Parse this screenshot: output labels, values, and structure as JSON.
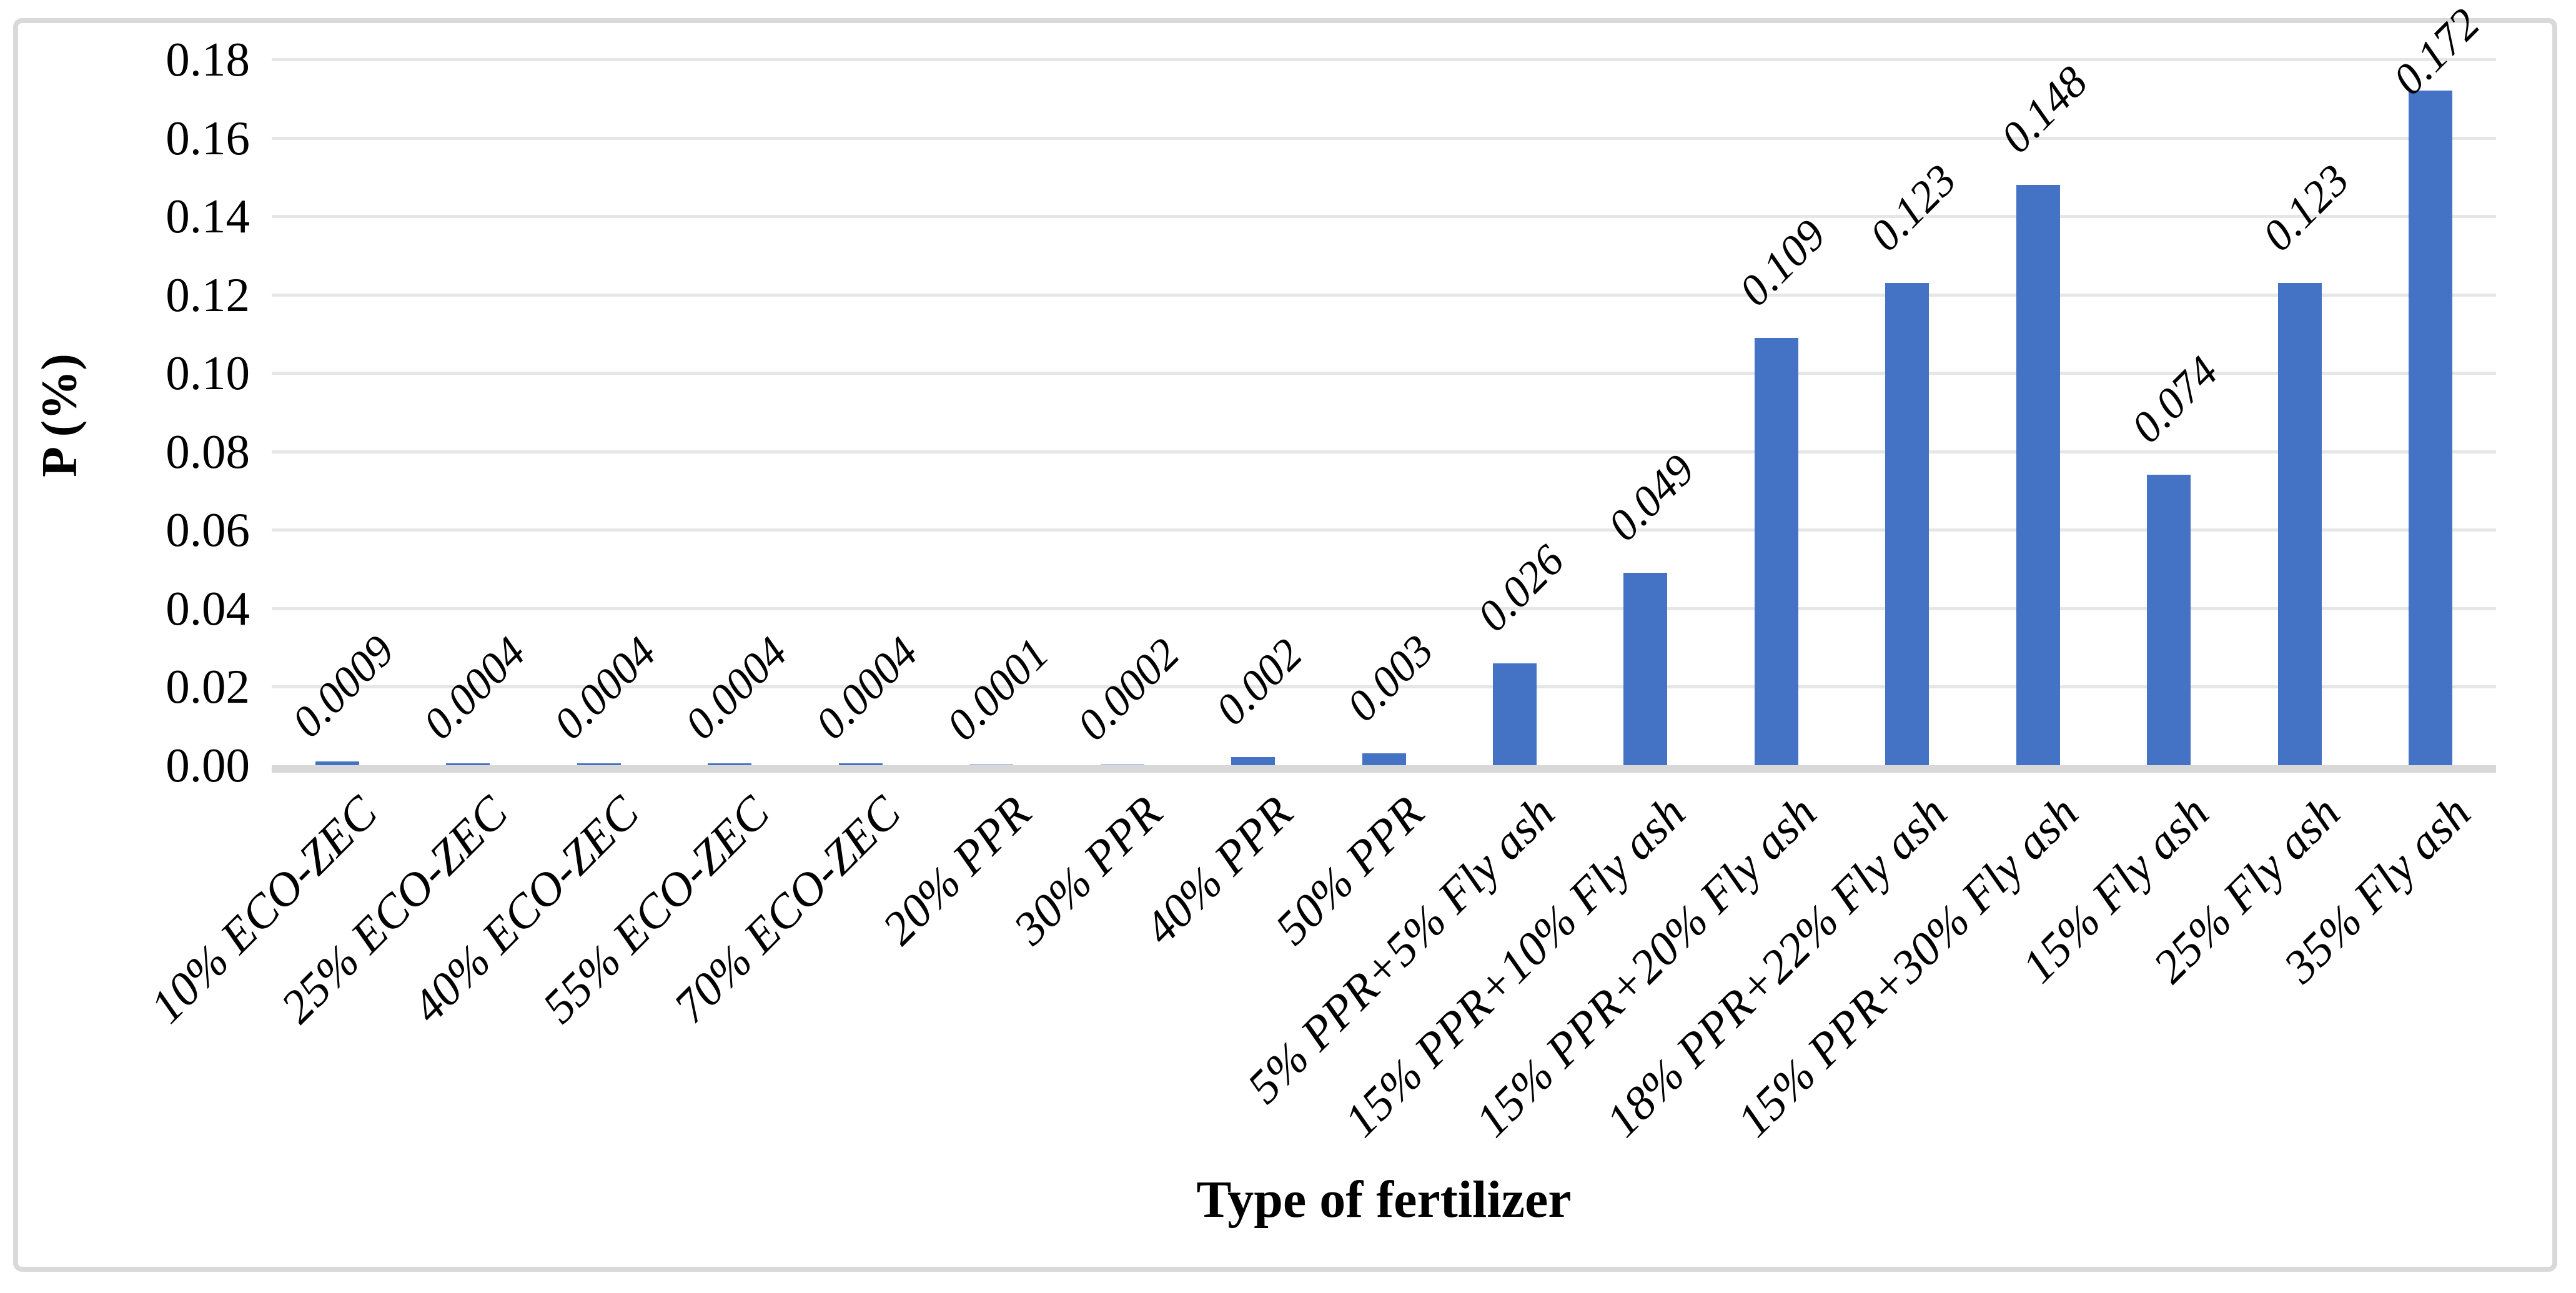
{
  "figure": {
    "background": "#ffffff",
    "border_color": "#d9d9d9"
  },
  "chart_data": {
    "type": "bar",
    "title": "",
    "xlabel": "Type of fertilizer",
    "ylabel": "P (%)",
    "categories": [
      "10% ECO-ZEC",
      "25% ECO-ZEC",
      "40% ECO-ZEC",
      "55% ECO-ZEC",
      "70% ECO-ZEC",
      "20% PPR",
      "30% PPR",
      "40% PPR",
      "50% PPR",
      "5% PPR+5% Fly ash",
      "15% PPR+10% Fly ash",
      "15% PPR+20% Fly ash",
      "18% PPR+22% Fly ash",
      "15% PPR+30% Fly ash",
      "15% Fly ash",
      "25% Fly ash",
      "35% Fly ash"
    ],
    "values": [
      0.0009,
      0.0004,
      0.0004,
      0.0004,
      0.0004,
      0.0001,
      0.0002,
      0.002,
      0.003,
      0.026,
      0.049,
      0.109,
      0.123,
      0.148,
      0.074,
      0.123,
      0.172
    ],
    "value_labels": [
      "0.0009",
      "0.0004",
      "0.0004",
      "0.0004",
      "0.0004",
      "0.0001",
      "0.0002",
      "0.002",
      "0.003",
      "0.026",
      "0.049",
      "0.109",
      "0.123",
      "0.148",
      "0.074",
      "0.123",
      "0.172"
    ],
    "y_ticks": [
      "0.00",
      "0.02",
      "0.04",
      "0.06",
      "0.08",
      "0.10",
      "0.12",
      "0.14",
      "0.16",
      "0.18"
    ],
    "ylim": [
      0,
      0.18
    ],
    "y_tick_step": 0.02,
    "bar_color": "#4472c4",
    "gridline_color": "#e6e6e6",
    "axisline_color": "#d8d8d8",
    "grid": "horizontal",
    "legend_position": "none",
    "data_label_rotation_deg": 45,
    "category_label_rotation_deg": 45
  }
}
